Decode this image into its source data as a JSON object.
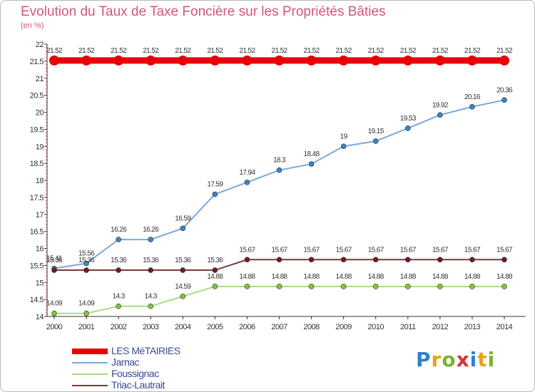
{
  "title": "Evolution du Taux de Taxe Foncière sur les Propriétés Bâties",
  "subtitle": "(en %)",
  "logo": {
    "text": "Proxiti",
    "letter_colors": [
      "#2f7fd0",
      "#e8a317",
      "#7ab32e",
      "#d6332f",
      "#2f7fd0",
      "#e8a317",
      "#7ab32e"
    ]
  },
  "chart_data": {
    "type": "line",
    "title": "Evolution du Taux de Taxe Foncière sur les Propriétés Bâties",
    "ylabel": "(en %)",
    "xlabel": "",
    "ylim": [
      14,
      22
    ],
    "y_ticks": [
      "14",
      "14.5",
      "15",
      "15.5",
      "16",
      "16.5",
      "17",
      "17.5",
      "18",
      "18.5",
      "19",
      "19.5",
      "20",
      "20.5",
      "21",
      "21.5",
      "22"
    ],
    "categories": [
      "2000",
      "2001",
      "2002",
      "2003",
      "2004",
      "2005",
      "2006",
      "2007",
      "2008",
      "2009",
      "2010",
      "2011",
      "2012",
      "2013",
      "2014"
    ],
    "grid": false,
    "legend": "bottom-left",
    "series": [
      {
        "name": "LES MéTAIRIES",
        "color": "#e8000a",
        "thick": true,
        "values": [
          21.52,
          21.52,
          21.52,
          21.52,
          21.52,
          21.52,
          21.52,
          21.52,
          21.52,
          21.52,
          21.52,
          21.52,
          21.52,
          21.52,
          21.52
        ],
        "labels": [
          "21.52",
          "21.52",
          "21.52",
          "21.52",
          "21.52",
          "21.52",
          "21.52",
          "21.52",
          "21.52",
          "21.52",
          "21.52",
          "21.52",
          "21.52",
          "21.52",
          "21.52"
        ]
      },
      {
        "name": "Jarnac",
        "color": "#7aaad8",
        "marker": "#3a84c6",
        "values": [
          15.41,
          15.56,
          16.26,
          16.26,
          16.59,
          17.59,
          17.94,
          18.3,
          18.48,
          19,
          19.15,
          19.53,
          19.92,
          20.16,
          20.36
        ],
        "labels": [
          "15.41",
          "15.56",
          "16.26",
          "16.26",
          "16.59",
          "17.59",
          "17.94",
          "18.3",
          "18.48",
          "19",
          "19.15",
          "19.53",
          "19.92",
          "20.16",
          "20.36"
        ]
      },
      {
        "name": "Foussignac",
        "color": "#a8dc84",
        "marker": "#7cc63c",
        "values": [
          14.09,
          14.09,
          14.3,
          14.3,
          14.59,
          14.88,
          14.88,
          14.88,
          14.88,
          14.88,
          14.88,
          14.88,
          14.88,
          14.88,
          14.88
        ],
        "labels": [
          "14.09",
          "14.09",
          "14.3",
          "14.3",
          "14.59",
          "14.88",
          "14.88",
          "14.88",
          "14.88",
          "14.88",
          "14.88",
          "14.88",
          "14.88",
          "14.88",
          "14.88"
        ]
      },
      {
        "name": "Triac-Lautrait",
        "color": "#7a3a3a",
        "marker": "#6a1e24",
        "values": [
          15.36,
          15.36,
          15.36,
          15.36,
          15.36,
          15.36,
          15.67,
          15.67,
          15.67,
          15.67,
          15.67,
          15.67,
          15.67,
          15.67,
          15.67
        ],
        "labels": [
          "15.36",
          "15.36",
          "15.36",
          "15.36",
          "15.36",
          "15.36",
          "15.67",
          "15.67",
          "15.67",
          "15.67",
          "15.67",
          "15.67",
          "15.67",
          "15.67",
          "15.67"
        ]
      }
    ]
  }
}
